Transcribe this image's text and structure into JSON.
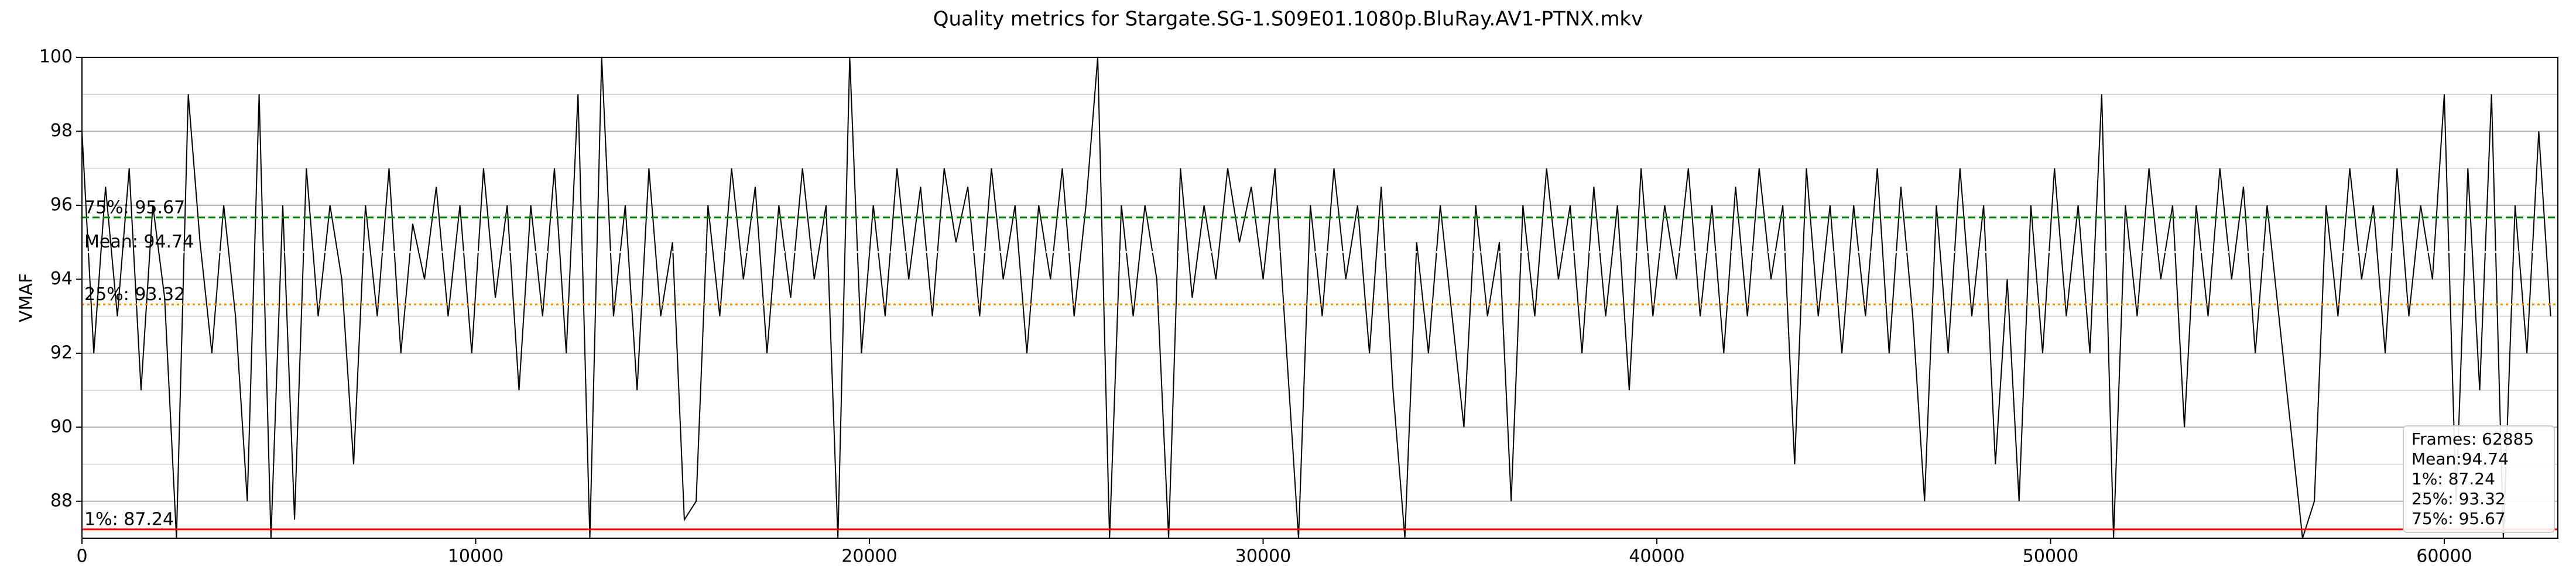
{
  "chart_data": {
    "type": "line",
    "title": "Quality metrics for Stargate.SG-1.S09E01.1080p.BluRay.AV1-PTNX.mkv",
    "y_label": "VMAF",
    "x": [
      0,
      300,
      600,
      900,
      1200,
      1500,
      1800,
      2100,
      2400,
      2700,
      3000,
      3300,
      3600,
      3900,
      4200,
      4500,
      4800,
      5100,
      5400,
      5700,
      6000,
      6300,
      6600,
      6900,
      7200,
      7500,
      7800,
      8100,
      8400,
      8700,
      9000,
      9300,
      9600,
      9900,
      10200,
      10500,
      10800,
      11100,
      11400,
      11700,
      12000,
      12300,
      12600,
      12900,
      13200,
      13500,
      13800,
      14100,
      14400,
      14700,
      15000,
      15300,
      15600,
      15900,
      16200,
      16500,
      16800,
      17100,
      17400,
      17700,
      18000,
      18300,
      18600,
      18900,
      19200,
      19500,
      19800,
      20100,
      20400,
      20700,
      21000,
      21300,
      21600,
      21900,
      22200,
      22500,
      22800,
      23100,
      23400,
      23700,
      24000,
      24300,
      24600,
      24900,
      25200,
      25500,
      25800,
      26100,
      26400,
      26700,
      27000,
      27300,
      27600,
      27900,
      28200,
      28500,
      28800,
      29100,
      29400,
      29700,
      30000,
      30300,
      30600,
      30900,
      31200,
      31500,
      31800,
      32100,
      32400,
      32700,
      33000,
      33300,
      33600,
      33900,
      34200,
      34500,
      34800,
      35100,
      35400,
      35700,
      36000,
      36300,
      36600,
      36900,
      37200,
      37500,
      37800,
      38100,
      38400,
      38700,
      39000,
      39300,
      39600,
      39900,
      40200,
      40500,
      40800,
      41100,
      41400,
      41700,
      42000,
      42300,
      42600,
      42900,
      43200,
      43500,
      43800,
      44100,
      44400,
      44700,
      45000,
      45300,
      45600,
      45900,
      46200,
      46500,
      46800,
      47100,
      47400,
      47700,
      48000,
      48300,
      48600,
      48900,
      49200,
      49500,
      49800,
      50100,
      50400,
      50700,
      51000,
      51300,
      51600,
      51900,
      52200,
      52500,
      52800,
      53100,
      53400,
      53700,
      54000,
      54300,
      54600,
      54900,
      55200,
      55500,
      55800,
      56100,
      56400,
      56700,
      57000,
      57300,
      57600,
      57900,
      58200,
      58500,
      58800,
      59100,
      59400,
      59700,
      60000,
      60300,
      60600,
      60900,
      61200,
      61500,
      61800,
      62100,
      62400,
      62700
    ],
    "series": [
      {
        "name": "VMAF",
        "color": "#000000",
        "values": [
          98,
          92,
          96.5,
          93,
          97,
          91,
          96,
          93.5,
          87,
          99,
          95,
          92,
          96,
          93,
          88,
          99,
          87,
          96,
          87.5,
          97,
          93,
          96,
          94,
          89,
          96,
          93,
          97,
          92,
          95.5,
          94,
          96.5,
          93,
          96,
          92,
          97,
          93.5,
          96,
          91,
          96,
          93,
          97,
          92,
          99,
          87,
          100,
          93,
          96,
          91,
          97,
          93,
          95,
          87.5,
          88,
          96,
          93,
          97,
          94,
          96.5,
          92,
          96,
          93.5,
          97,
          94,
          96,
          87,
          100,
          92,
          96,
          93,
          97,
          94,
          96.5,
          93,
          97,
          95,
          96.5,
          93,
          97,
          94,
          96,
          92,
          96,
          94,
          97,
          93,
          96,
          100,
          87,
          96,
          93,
          96,
          94,
          87,
          97,
          93.5,
          96,
          94,
          97,
          95,
          96.5,
          94,
          97,
          92,
          87,
          96,
          93,
          97,
          94,
          96,
          92,
          96.5,
          91,
          87,
          95,
          92,
          96,
          93,
          90,
          96,
          93,
          95,
          88,
          96,
          93,
          97,
          94,
          96,
          92,
          96.5,
          93,
          96,
          91,
          97,
          93,
          96,
          94,
          97,
          93,
          96,
          92,
          96.5,
          93,
          97,
          94,
          96,
          89,
          97,
          93,
          96,
          92,
          96,
          93,
          97,
          92,
          96.5,
          93,
          88,
          96,
          92,
          97,
          93,
          96,
          89,
          94,
          88,
          96,
          92,
          97,
          93,
          96,
          92,
          99,
          87,
          96,
          93,
          97,
          94,
          96,
          90,
          96,
          93,
          97,
          94,
          96.5,
          92,
          96,
          93,
          90,
          87,
          88,
          96,
          93,
          97,
          94,
          96,
          92,
          97,
          93,
          96,
          94,
          99,
          88,
          97,
          91,
          99,
          87,
          96,
          92,
          98,
          93
        ]
      }
    ],
    "xlim": [
      0,
      62885
    ],
    "xticks": [
      0,
      10000,
      20000,
      30000,
      40000,
      50000,
      60000
    ],
    "ylim": [
      87,
      100
    ],
    "yticks": [
      88,
      90,
      92,
      94,
      96,
      98,
      100
    ],
    "grid": true,
    "reference_lines": [
      {
        "label": "75%: 95.67",
        "value": 95.67,
        "color": "#008000",
        "dash": "12,6"
      },
      {
        "label": "Mean: 94.74",
        "value": 94.74,
        "color": "#ffffff",
        "dash": "4,5"
      },
      {
        "label": "25%: 93.32",
        "value": 93.32,
        "color": "#ff8c00",
        "dash": "4,5"
      },
      {
        "label": "1%: 87.24",
        "value": 87.24,
        "color": "#ff0000",
        "dash": "none"
      }
    ],
    "stats_box": [
      "Frames: 62885",
      "Mean:94.74",
      "1%: 87.24",
      "25%: 93.32",
      "75%: 95.67"
    ]
  }
}
